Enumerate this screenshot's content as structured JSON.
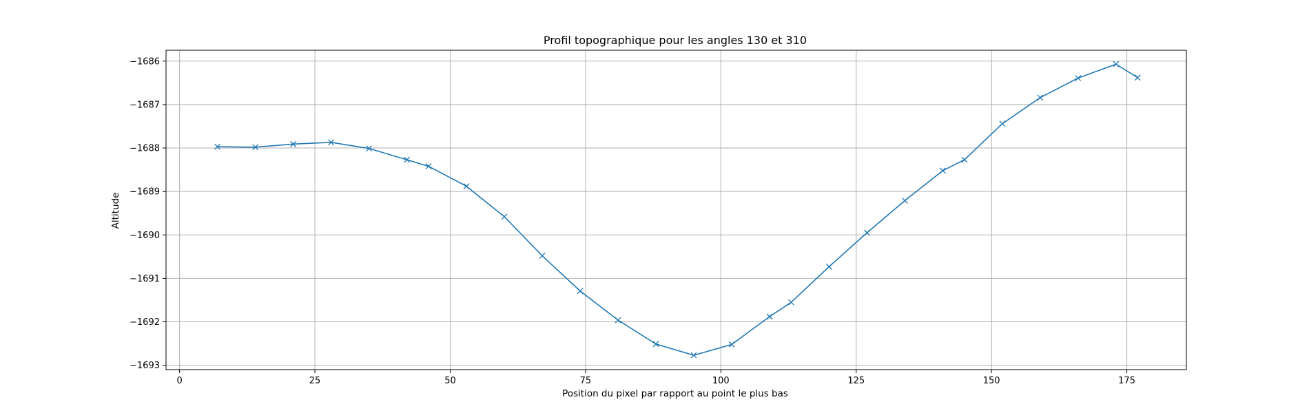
{
  "chart_data": {
    "type": "line",
    "title": "Profil topographique pour les angles 130 et 310",
    "xlabel": "Position du pixel par rapport au point le plus bas",
    "ylabel": "Altitude",
    "xlim": [
      -2.5,
      186
    ],
    "ylim": [
      -1693.1,
      -1685.75
    ],
    "xticks": [
      0,
      25,
      50,
      75,
      100,
      125,
      150,
      175
    ],
    "xtick_labels": [
      "0",
      "25",
      "50",
      "75",
      "100",
      "125",
      "150",
      "175"
    ],
    "yticks": [
      -1693,
      -1692,
      -1691,
      -1690,
      -1689,
      -1688,
      -1687,
      -1686
    ],
    "ytick_labels": [
      "−1693",
      "−1692",
      "−1691",
      "−1690",
      "−1689",
      "−1688",
      "−1687",
      "−1686"
    ],
    "grid": true,
    "color": "#1f77b4",
    "marker": "x",
    "series": [
      {
        "x": [
          7,
          14,
          21,
          28,
          35,
          42,
          46,
          53,
          60,
          67,
          74,
          81,
          88,
          95,
          102,
          109,
          113,
          120,
          127,
          134,
          141,
          145,
          152,
          159,
          166,
          173,
          177
        ],
        "y": [
          -1687.97,
          -1687.98,
          -1687.91,
          -1687.87,
          -1688.01,
          -1688.27,
          -1688.42,
          -1688.88,
          -1689.58,
          -1690.48,
          -1691.29,
          -1691.96,
          -1692.51,
          -1692.77,
          -1692.52,
          -1691.88,
          -1691.55,
          -1690.73,
          -1689.95,
          -1689.21,
          -1688.52,
          -1688.27,
          -1687.44,
          -1686.84,
          -1686.39,
          -1686.07,
          -1686.38
        ]
      }
    ]
  }
}
